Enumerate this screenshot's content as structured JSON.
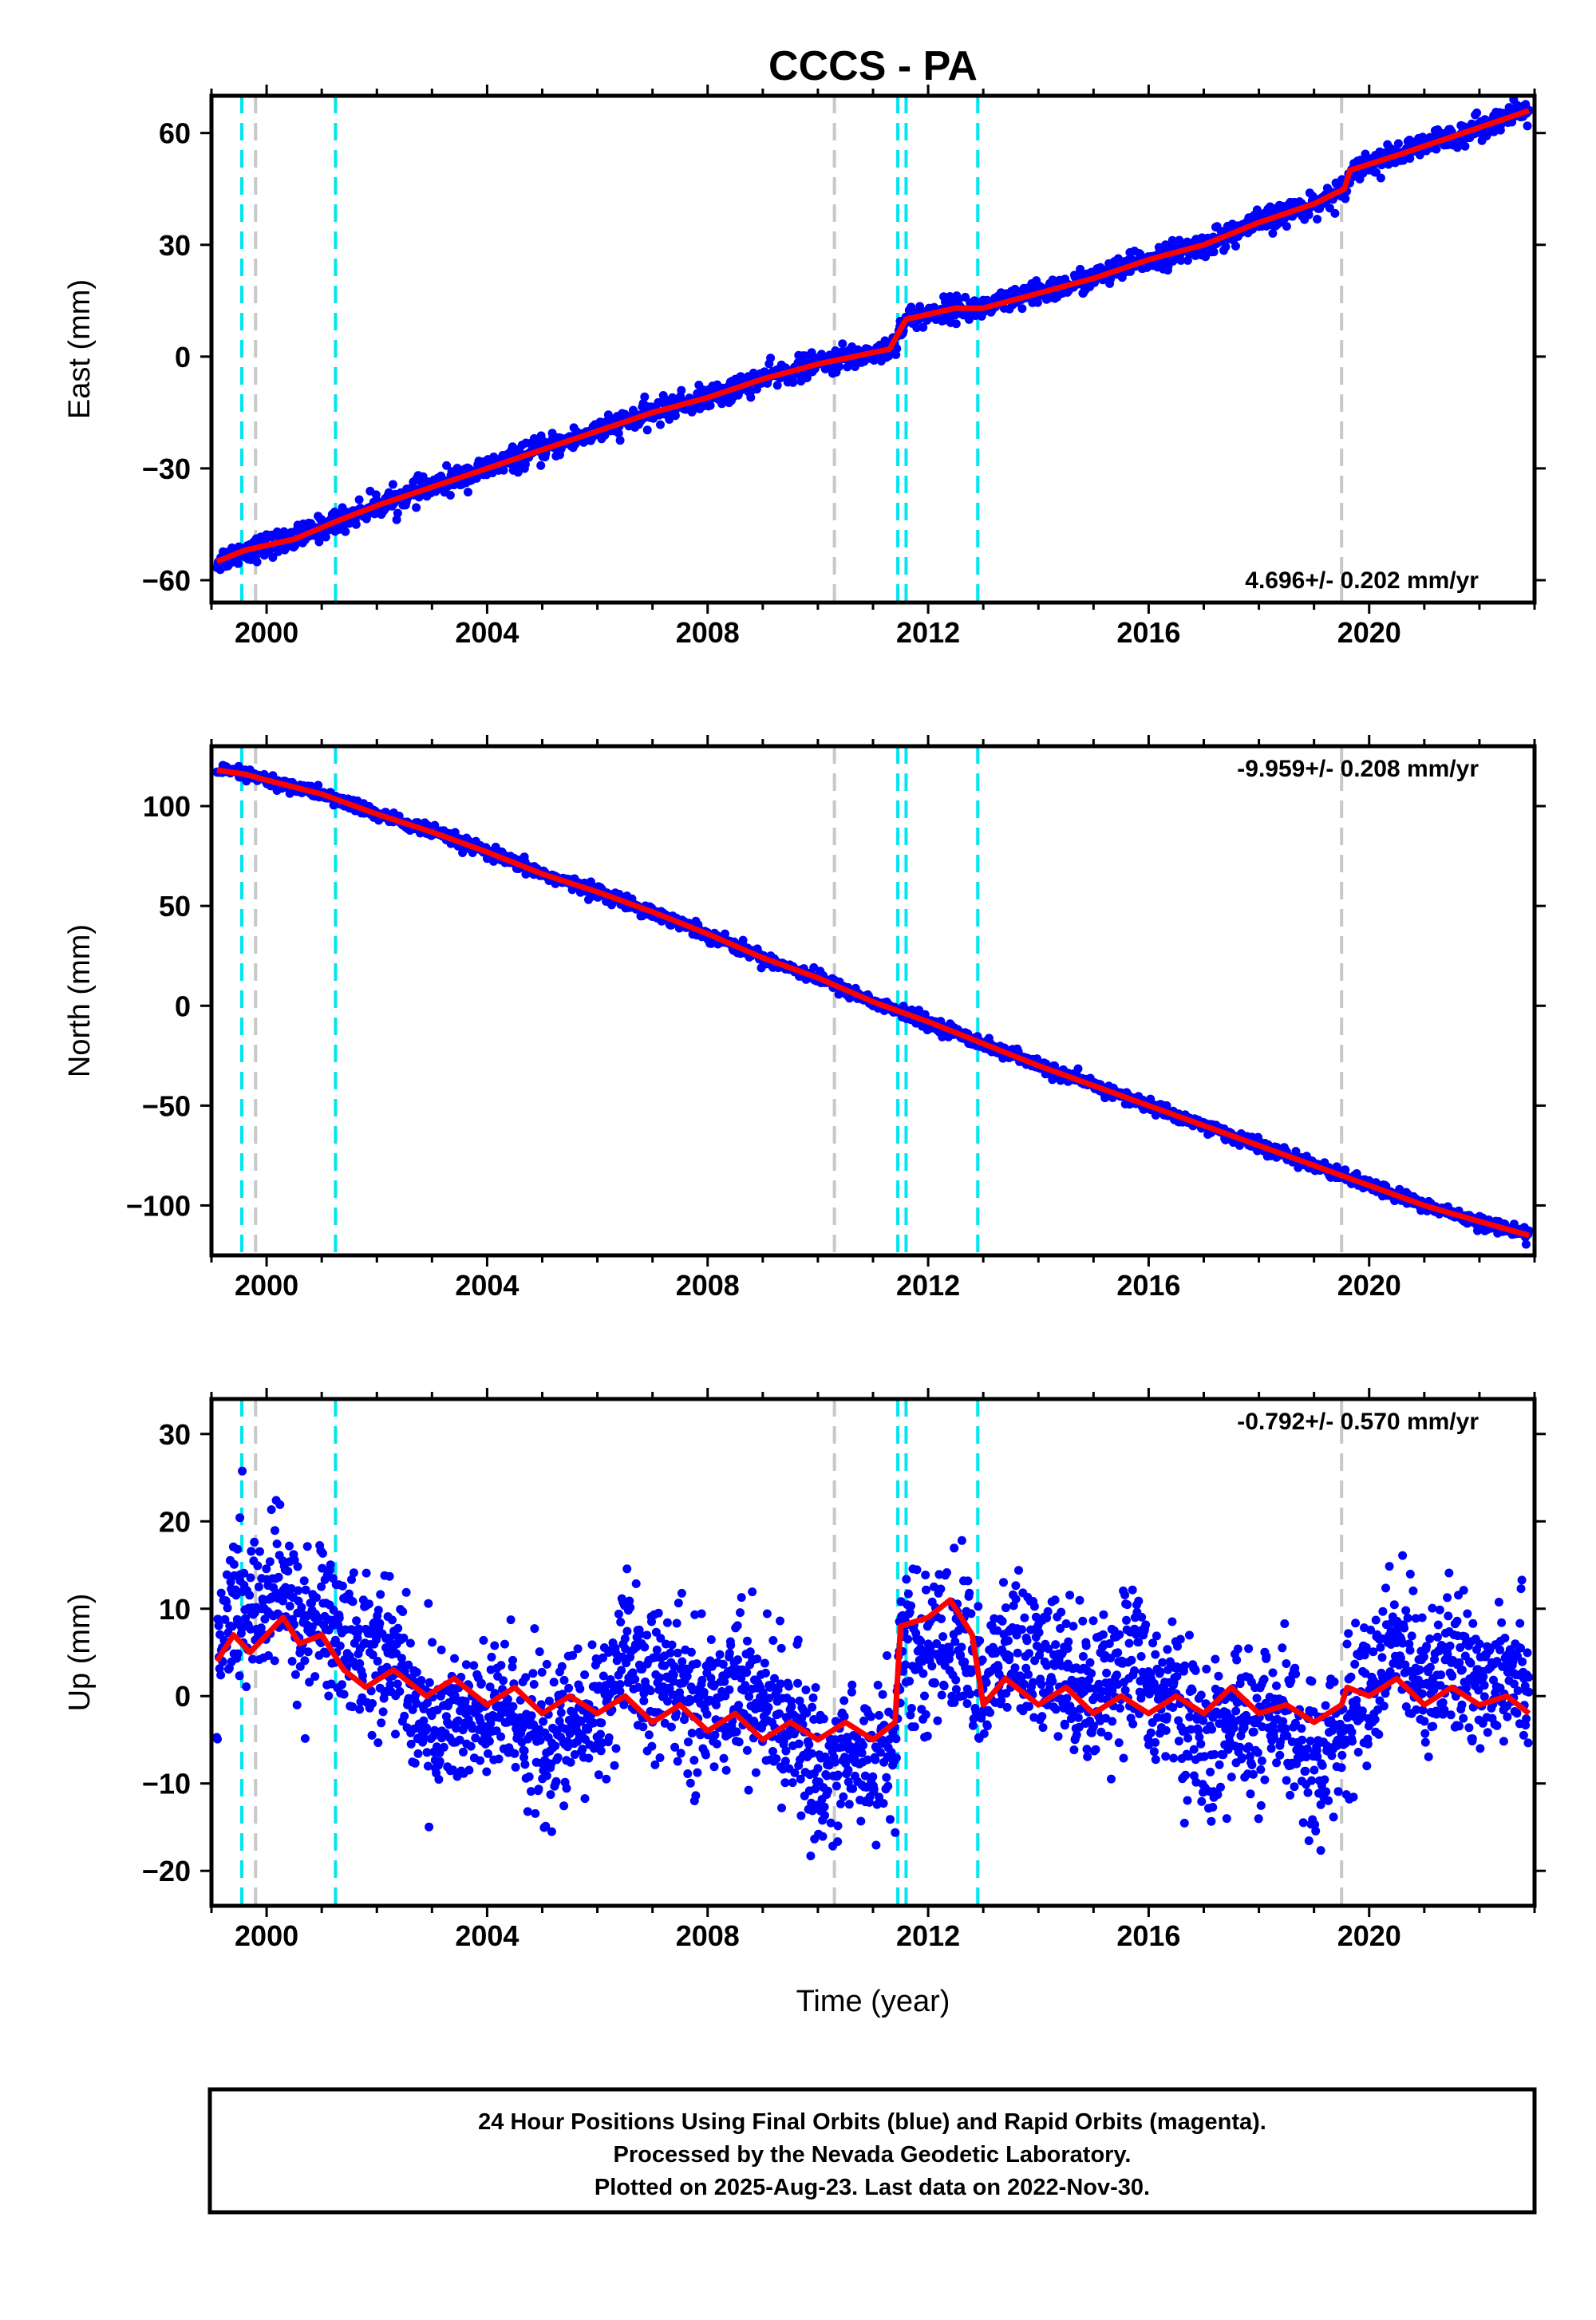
{
  "title": "CCCS - PA",
  "chart_data": [
    {
      "type": "scatter",
      "ylabel": "East (mm)",
      "xlim": [
        1999.0,
        2023.0
      ],
      "ylim": [
        -66,
        70
      ],
      "yticks": [
        -60,
        -30,
        0,
        30,
        60
      ],
      "ytick_labels": [
        "−60",
        "−30",
        "0",
        "30",
        "60"
      ],
      "xticks": [
        2000,
        2004,
        2008,
        2012,
        2016,
        2020
      ],
      "xtick_labels": [
        "2000",
        "2004",
        "2008",
        "2012",
        "2016",
        "2020"
      ],
      "rate_label": "4.696+/- 0.202 mm/yr",
      "rate_position": "bottom-right",
      "trend_points": [
        [
          1999.1,
          -55
        ],
        [
          1999.6,
          -52
        ],
        [
          2000.5,
          -49
        ],
        [
          2001.3,
          -44
        ],
        [
          2002.0,
          -40
        ],
        [
          2003.0,
          -35
        ],
        [
          2004.0,
          -30
        ],
        [
          2005.0,
          -25
        ],
        [
          2006.0,
          -20
        ],
        [
          2007.0,
          -15
        ],
        [
          2008.0,
          -11
        ],
        [
          2009.0,
          -6
        ],
        [
          2010.0,
          -2
        ],
        [
          2011.3,
          2
        ],
        [
          2011.6,
          10
        ],
        [
          2012.5,
          13
        ],
        [
          2013.0,
          13
        ],
        [
          2014.0,
          17
        ],
        [
          2015.0,
          21
        ],
        [
          2016.0,
          26
        ],
        [
          2017.0,
          30
        ],
        [
          2018.0,
          36
        ],
        [
          2019.0,
          41
        ],
        [
          2019.55,
          45
        ],
        [
          2019.65,
          50
        ],
        [
          2020.5,
          54
        ],
        [
          2021.5,
          59
        ],
        [
          2022.9,
          66
        ]
      ]
    },
    {
      "type": "scatter",
      "ylabel": "North (mm)",
      "xlim": [
        1999.0,
        2023.0
      ],
      "ylim": [
        -125,
        130
      ],
      "yticks": [
        -100,
        -50,
        0,
        50,
        100
      ],
      "ytick_labels": [
        "−100",
        "−50",
        "0",
        "50",
        "100"
      ],
      "xticks": [
        2000,
        2004,
        2008,
        2012,
        2016,
        2020
      ],
      "xtick_labels": [
        "2000",
        "2004",
        "2008",
        "2012",
        "2016",
        "2020"
      ],
      "rate_label": "-9.959+/- 0.208 mm/yr",
      "rate_position": "top-right",
      "trend_points": [
        [
          1999.1,
          118
        ],
        [
          1999.6,
          116
        ],
        [
          2000.0,
          113
        ],
        [
          2001.0,
          106
        ],
        [
          2002.0,
          96
        ],
        [
          2003.0,
          87
        ],
        [
          2004.0,
          77
        ],
        [
          2005.0,
          66
        ],
        [
          2006.0,
          57
        ],
        [
          2007.0,
          47
        ],
        [
          2008.0,
          36
        ],
        [
          2009.0,
          24
        ],
        [
          2010.0,
          14
        ],
        [
          2011.0,
          2
        ],
        [
          2011.5,
          -3
        ],
        [
          2012.0,
          -8
        ],
        [
          2013.0,
          -19
        ],
        [
          2014.0,
          -30
        ],
        [
          2015.0,
          -40
        ],
        [
          2016.0,
          -50
        ],
        [
          2017.0,
          -60
        ],
        [
          2018.0,
          -70
        ],
        [
          2019.0,
          -80
        ],
        [
          2019.5,
          -85
        ],
        [
          2020.0,
          -90
        ],
        [
          2021.0,
          -100
        ],
        [
          2022.0,
          -108
        ],
        [
          2022.9,
          -115
        ]
      ]
    },
    {
      "type": "scatter",
      "ylabel": "Up (mm)",
      "xlabel": "Time (year)",
      "xlim": [
        1999.0,
        2023.0
      ],
      "ylim": [
        -24,
        34
      ],
      "yticks": [
        -20,
        -10,
        0,
        10,
        20,
        30
      ],
      "ytick_labels": [
        "−20",
        "−10",
        "0",
        "10",
        "20",
        "30"
      ],
      "xticks": [
        2000,
        2004,
        2008,
        2012,
        2016,
        2020
      ],
      "xtick_labels": [
        "2000",
        "2004",
        "2008",
        "2012",
        "2016",
        "2020"
      ],
      "rate_label": "-0.792+/- 0.570 mm/yr",
      "rate_position": "top-right",
      "trend_points": [
        [
          1999.1,
          4
        ],
        [
          1999.4,
          7
        ],
        [
          1999.7,
          5
        ],
        [
          2000.0,
          7
        ],
        [
          2000.3,
          9
        ],
        [
          2000.6,
          6
        ],
        [
          2001.0,
          7
        ],
        [
          2001.4,
          3
        ],
        [
          2001.8,
          1
        ],
        [
          2002.3,
          3
        ],
        [
          2002.9,
          0
        ],
        [
          2003.4,
          2
        ],
        [
          2004.0,
          -1
        ],
        [
          2004.5,
          1
        ],
        [
          2005.0,
          -2
        ],
        [
          2005.5,
          0
        ],
        [
          2006.0,
          -2
        ],
        [
          2006.5,
          0
        ],
        [
          2007.0,
          -3
        ],
        [
          2007.5,
          -1
        ],
        [
          2008.0,
          -4
        ],
        [
          2008.5,
          -2
        ],
        [
          2009.0,
          -5
        ],
        [
          2009.5,
          -3
        ],
        [
          2010.0,
          -5
        ],
        [
          2010.5,
          -3
        ],
        [
          2011.0,
          -5
        ],
        [
          2011.4,
          -3
        ],
        [
          2011.5,
          8
        ],
        [
          2012.0,
          9
        ],
        [
          2012.4,
          11
        ],
        [
          2012.8,
          7
        ],
        [
          2013.0,
          -1
        ],
        [
          2013.4,
          2
        ],
        [
          2014.0,
          -1
        ],
        [
          2014.5,
          1
        ],
        [
          2015.0,
          -2
        ],
        [
          2015.5,
          0
        ],
        [
          2016.0,
          -2
        ],
        [
          2016.5,
          0
        ],
        [
          2017.0,
          -2
        ],
        [
          2017.5,
          1
        ],
        [
          2018.0,
          -2
        ],
        [
          2018.5,
          -1
        ],
        [
          2019.0,
          -3
        ],
        [
          2019.5,
          -1
        ],
        [
          2019.6,
          1
        ],
        [
          2020.0,
          0
        ],
        [
          2020.5,
          2
        ],
        [
          2021.0,
          -1
        ],
        [
          2021.5,
          1
        ],
        [
          2022.0,
          -1
        ],
        [
          2022.5,
          0
        ],
        [
          2022.9,
          -2
        ]
      ]
    }
  ],
  "event_lines": {
    "cyan": [
      1999.55,
      2001.25,
      2011.45,
      2011.6,
      2012.9
    ],
    "gray": [
      1999.8,
      2010.3,
      2019.5
    ],
    "cyan_color": "#00e5ee",
    "gray_color": "#c8c8c8"
  },
  "series_colors": {
    "final_orbits": "#0000ff",
    "trend": "#ff0000"
  },
  "footer": {
    "line1": "24 Hour Positions Using Final Orbits (blue) and Rapid Orbits (magenta).",
    "line2": "Processed by the Nevada Geodetic Laboratory.",
    "line3": "Plotted on 2025-Aug-23. Last data on 2022-Nov-30."
  }
}
